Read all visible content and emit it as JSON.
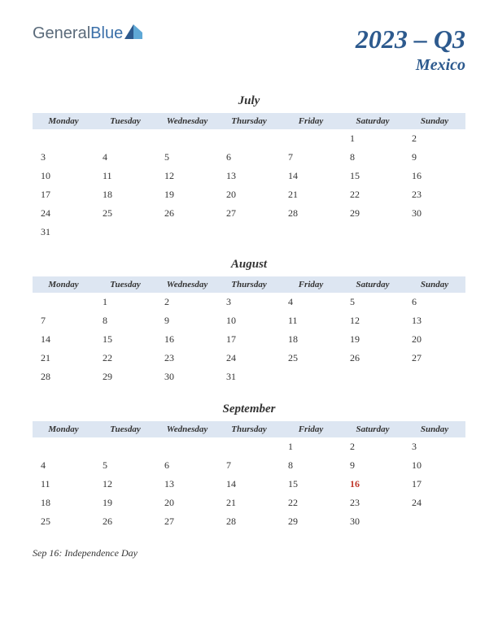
{
  "logo": {
    "text_gray": "General",
    "text_blue": "Blue"
  },
  "title": "2023 – Q3",
  "subtitle": "Mexico",
  "day_headers": [
    "Monday",
    "Tuesday",
    "Wednesday",
    "Thursday",
    "Friday",
    "Saturday",
    "Sunday"
  ],
  "colors": {
    "header_bg": "#dde6f2",
    "title_color": "#2d5a8e",
    "holiday_color": "#c0392b",
    "text_color": "#333333",
    "logo_gray": "#5a6a7a",
    "logo_blue": "#3a6fa8"
  },
  "fontsize": {
    "main_title": 32,
    "sub_title": 20,
    "month_name": 15,
    "day_header": 11,
    "day_cell": 12,
    "notes": 12
  },
  "months": [
    {
      "name": "July",
      "weeks": [
        [
          "",
          "",
          "",
          "",
          "",
          "1",
          "2"
        ],
        [
          "3",
          "4",
          "5",
          "6",
          "7",
          "8",
          "9"
        ],
        [
          "10",
          "11",
          "12",
          "13",
          "14",
          "15",
          "16"
        ],
        [
          "17",
          "18",
          "19",
          "20",
          "21",
          "22",
          "23"
        ],
        [
          "24",
          "25",
          "26",
          "27",
          "28",
          "29",
          "30"
        ],
        [
          "31",
          "",
          "",
          "",
          "",
          "",
          ""
        ]
      ],
      "holidays": []
    },
    {
      "name": "August",
      "weeks": [
        [
          "",
          "1",
          "2",
          "3",
          "4",
          "5",
          "6"
        ],
        [
          "7",
          "8",
          "9",
          "10",
          "11",
          "12",
          "13"
        ],
        [
          "14",
          "15",
          "16",
          "17",
          "18",
          "19",
          "20"
        ],
        [
          "21",
          "22",
          "23",
          "24",
          "25",
          "26",
          "27"
        ],
        [
          "28",
          "29",
          "30",
          "31",
          "",
          "",
          ""
        ]
      ],
      "holidays": []
    },
    {
      "name": "September",
      "weeks": [
        [
          "",
          "",
          "",
          "",
          "1",
          "2",
          "3"
        ],
        [
          "4",
          "5",
          "6",
          "7",
          "8",
          "9",
          "10"
        ],
        [
          "11",
          "12",
          "13",
          "14",
          "15",
          "16",
          "17"
        ],
        [
          "18",
          "19",
          "20",
          "21",
          "22",
          "23",
          "24"
        ],
        [
          "25",
          "26",
          "27",
          "28",
          "29",
          "30",
          ""
        ]
      ],
      "holidays": [
        "16"
      ]
    }
  ],
  "notes": "Sep 16: Independence Day"
}
